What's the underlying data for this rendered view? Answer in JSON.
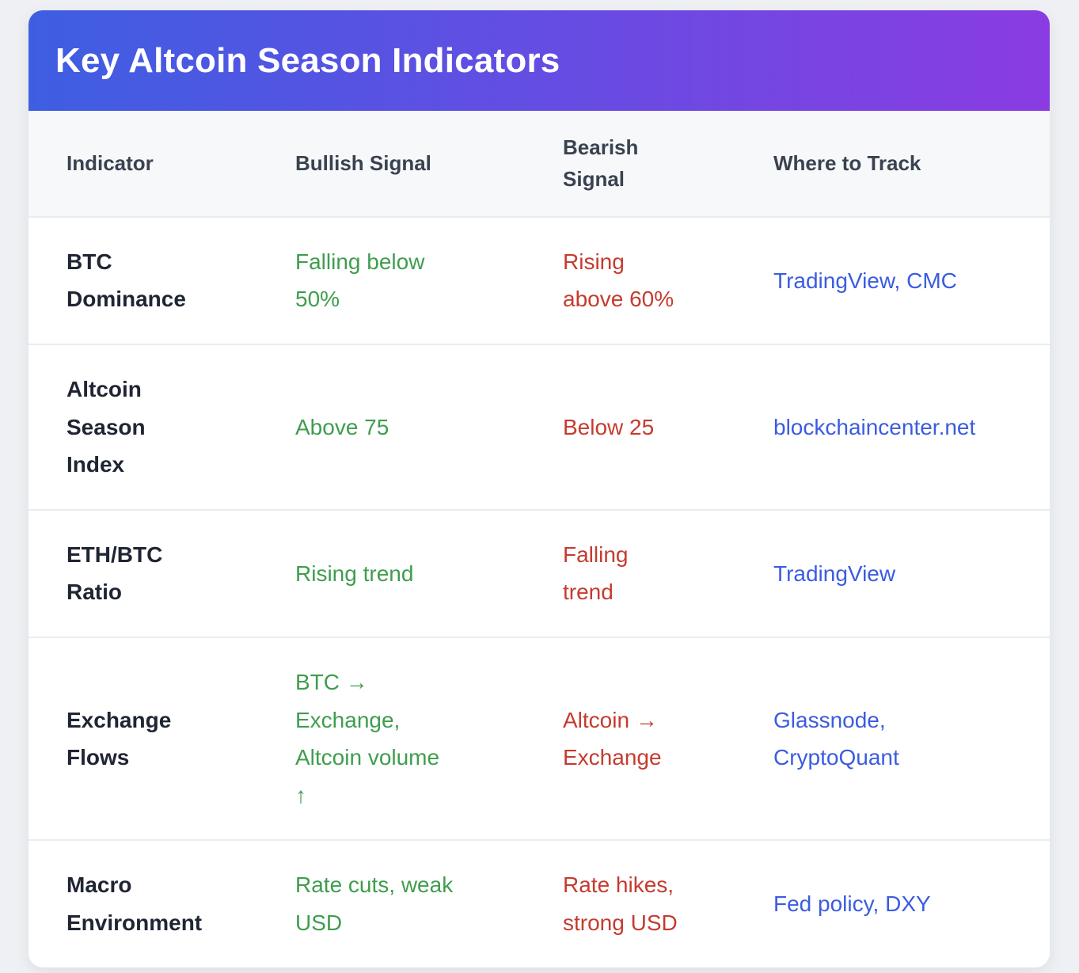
{
  "theme": {
    "gradient_from": "#3e5ee2",
    "gradient_to": "#8a3ce2",
    "bullish_color": "#3f9d4e",
    "bearish_color": "#c53b2f",
    "link_color": "#3b5ce0",
    "page_background": "#eef0f3",
    "header_row_background": "#f7f8fa"
  },
  "card": {
    "title": "Key Altcoin Season Indicators"
  },
  "table": {
    "columns": {
      "indicator": "Indicator",
      "bullish": "Bullish Signal",
      "bearish": "Bearish\nSignal",
      "track": "Where to Track"
    },
    "rows": [
      {
        "indicator": "BTC\nDominance",
        "bullish": "Falling below\n50%",
        "bearish": "Rising\nabove 60%",
        "track": "TradingView, CMC"
      },
      {
        "indicator": "Altcoin\nSeason\nIndex",
        "bullish": "Above 75",
        "bearish": "Below 25",
        "track": "blockchaincenter.net"
      },
      {
        "indicator": "ETH/BTC\nRatio",
        "bullish": "Rising trend",
        "bearish": "Falling\ntrend",
        "track": "TradingView"
      },
      {
        "indicator": "Exchange\nFlows",
        "bullish": "BTC →\nExchange,\nAltcoin volume\n↑",
        "bearish": "Altcoin →\nExchange",
        "track": "Glassnode,\nCryptoQuant"
      },
      {
        "indicator": "Macro\nEnvironment",
        "bullish": "Rate cuts, weak\nUSD",
        "bearish": "Rate hikes,\nstrong USD",
        "track": "Fed policy, DXY"
      }
    ]
  }
}
